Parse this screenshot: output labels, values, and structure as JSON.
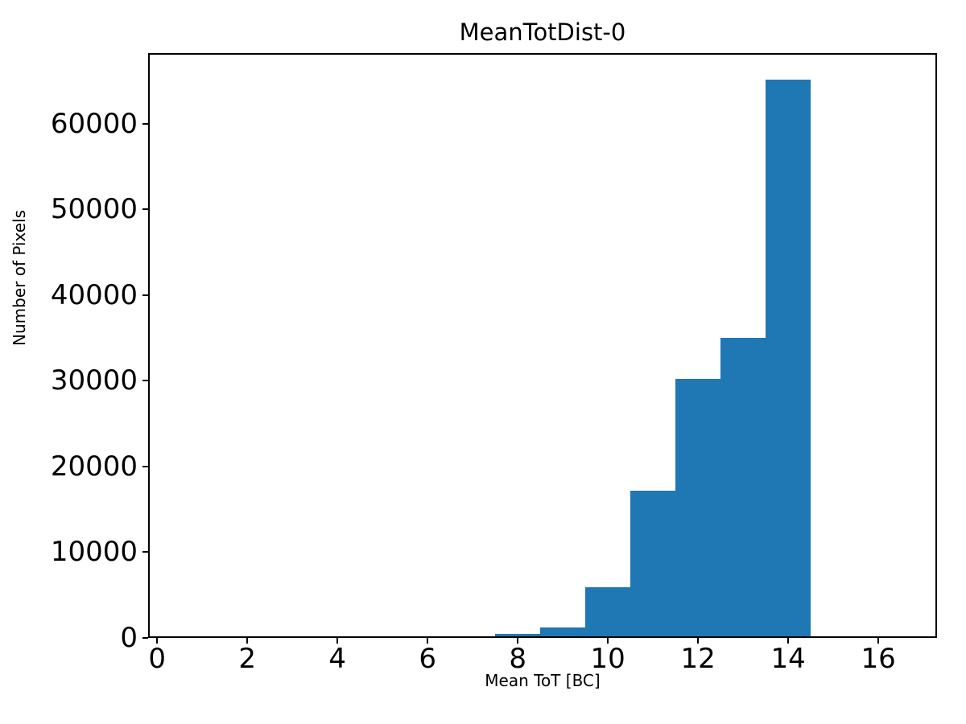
{
  "chart_data": {
    "type": "bar",
    "subtype": "histogram",
    "title": "MeanTotDist-0",
    "xlabel": "Mean ToT [BC]",
    "ylabel": "Number of Pixels",
    "bin_edges": [
      7.5,
      8.5,
      9.5,
      10.5,
      11.5,
      12.5,
      13.5,
      14.5
    ],
    "counts": [
      250,
      1050,
      5700,
      17000,
      30000,
      34800,
      65000
    ],
    "xticks": [
      0,
      2,
      4,
      6,
      8,
      10,
      12,
      14,
      16
    ],
    "yticks": [
      0,
      10000,
      20000,
      30000,
      40000,
      50000,
      60000
    ],
    "xlim": [
      -0.2,
      17.3
    ],
    "ylim": [
      0,
      68250
    ],
    "bar_color": "#1f77b4",
    "axis_color": "#000000",
    "background_color": "#ffffff",
    "grid": false,
    "legend": false
  }
}
